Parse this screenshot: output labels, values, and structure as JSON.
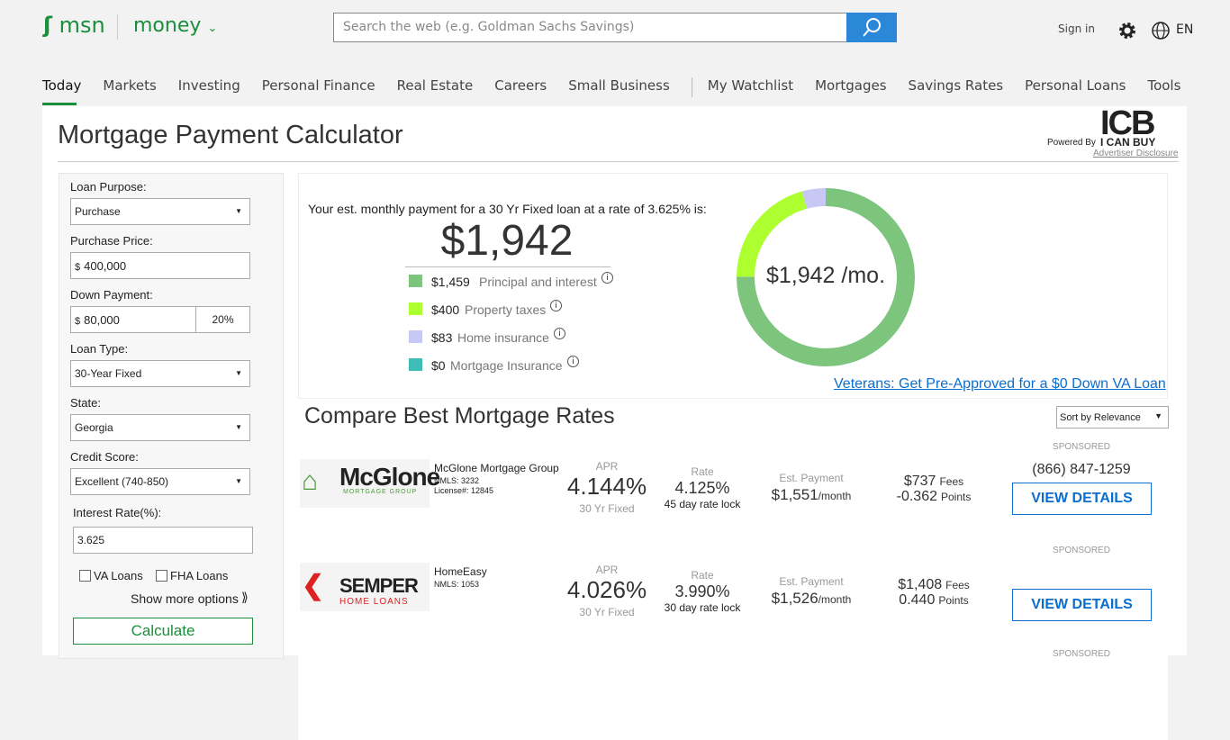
{
  "header": {
    "logo": "msn",
    "section": "money",
    "search_placeholder": "Search the web (e.g. Goldman Sachs Savings)",
    "sign_in": "Sign in",
    "language": "EN"
  },
  "nav": {
    "left": [
      "Today",
      "Markets",
      "Investing",
      "Personal Finance",
      "Real Estate",
      "Careers",
      "Small Business"
    ],
    "right": [
      "My Watchlist",
      "Mortgages",
      "Savings Rates",
      "Personal Loans",
      "Tools"
    ]
  },
  "title": "Mortgage Payment Calculator",
  "powered_by": "Powered By",
  "brand": "ICB",
  "brand_sub": "I CAN BUY",
  "advertiser": "Advertiser Disclosure",
  "form": {
    "fields": [
      {
        "label": "Loan Purpose:",
        "value": "Purchase",
        "kind": "select"
      },
      {
        "label": "Purchase Price:",
        "value": "400,000",
        "prefix": "$",
        "kind": "input"
      },
      {
        "label": "Down Payment:",
        "value": "80,000",
        "prefix": "$",
        "percent": "20%",
        "kind": "input"
      },
      {
        "label": "Loan Type:",
        "value": "30-Year Fixed",
        "kind": "select"
      },
      {
        "label": "State:",
        "value": "Georgia",
        "kind": "select"
      },
      {
        "label": "Credit Score:",
        "value": "Excellent (740-850)",
        "kind": "select"
      }
    ],
    "rate_label": "Interest Rate(%):",
    "rate_value": "3.625",
    "checkboxes": [
      "VA Loans",
      "FHA Loans"
    ],
    "show_more": "Show more options",
    "calculate": "Calculate"
  },
  "summary": {
    "intro": "Your est. monthly payment for a 30 Yr Fixed loan at a rate of 3.625% is:",
    "total": "$1,942",
    "breakdown": [
      {
        "value": 1459,
        "label": "$1,459",
        "name": "Principal and interest",
        "color": "#7dc47d"
      },
      {
        "value": 400,
        "label": "$400",
        "name": "Property taxes",
        "color": "#adff2f"
      },
      {
        "value": 83,
        "label": "$83",
        "name": "Home insurance",
        "color": "#c8c8f5"
      },
      {
        "value": 0,
        "label": "$0",
        "name": "Mortgage Insurance",
        "color": "#3dbdb5"
      }
    ],
    "center": "$1,942 /mo.",
    "va_link": "Veterans: Get Pre-Approved for a $0 Down VA Loan"
  },
  "compare_title": "Compare Best Mortgage Rates",
  "sort": "Sort by Relevance",
  "lenders": [
    {
      "sponsored": "SPONSORED",
      "logo": "McGlone",
      "logo_sub": "MORTGAGE GROUP",
      "name": "McGlone Mortgage Group",
      "nmls": "NMLS: 3232",
      "license": "License#: 12845",
      "apr_label": "APR",
      "apr": "4.144%",
      "apr_type": "30 Yr Fixed",
      "rate_label": "Rate",
      "rate": "4.125%",
      "lock": "45 day rate lock",
      "payment_label": "Est. Payment",
      "payment": "$1,551",
      "per": "/month",
      "fees": "$737",
      "fees_label": "Fees",
      "points": "-0.362",
      "points_label": "Points",
      "phone": "(866) 847-1259",
      "button": "VIEW DETAILS"
    },
    {
      "sponsored": "SPONSORED",
      "logo": "SEMPER",
      "logo_sub": "HOME LOANS",
      "name": "HomeEasy",
      "nmls": "NMLS: 1053",
      "apr_label": "APR",
      "apr": "4.026%",
      "apr_type": "30 Yr Fixed",
      "rate_label": "Rate",
      "rate": "3.990%",
      "lock": "30 day rate lock",
      "payment_label": "Est. Payment",
      "payment": "$1,526",
      "per": "/month",
      "fees": "$1,408",
      "fees_label": "Fees",
      "points": "0.440",
      "points_label": "Points",
      "button": "VIEW DETAILS"
    },
    {
      "sponsored": "SPONSORED"
    }
  ]
}
